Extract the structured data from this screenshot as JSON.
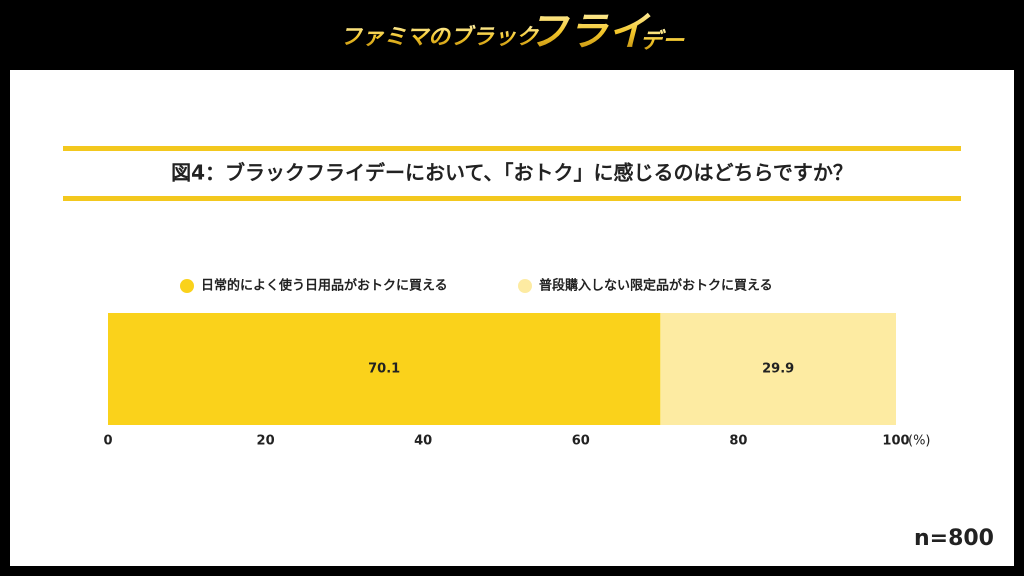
{
  "header": {
    "logo": [
      "ファミマのブラック",
      "フライ",
      "デー"
    ]
  },
  "chart_data": {
    "type": "stacked_bar",
    "title": "図4：ブラックフライデーにおいて、「おトク」に感じるのはどちらですか？",
    "categories": [
      null
    ],
    "series": [
      {
        "name": "日常的によく使う日用品がおトクに買える",
        "color": "#fad21b",
        "values": [
          70.1
        ]
      },
      {
        "name": "普段購入しない限定品がおトクに買える",
        "color": "#fdeba2",
        "values": [
          29.9
        ]
      }
    ],
    "xlim": [
      0,
      100
    ],
    "xticks": [
      0,
      20,
      40,
      60,
      80,
      100
    ],
    "x_unit": "(%)",
    "note": "n=800",
    "accent_color": "#f3c81e"
  }
}
